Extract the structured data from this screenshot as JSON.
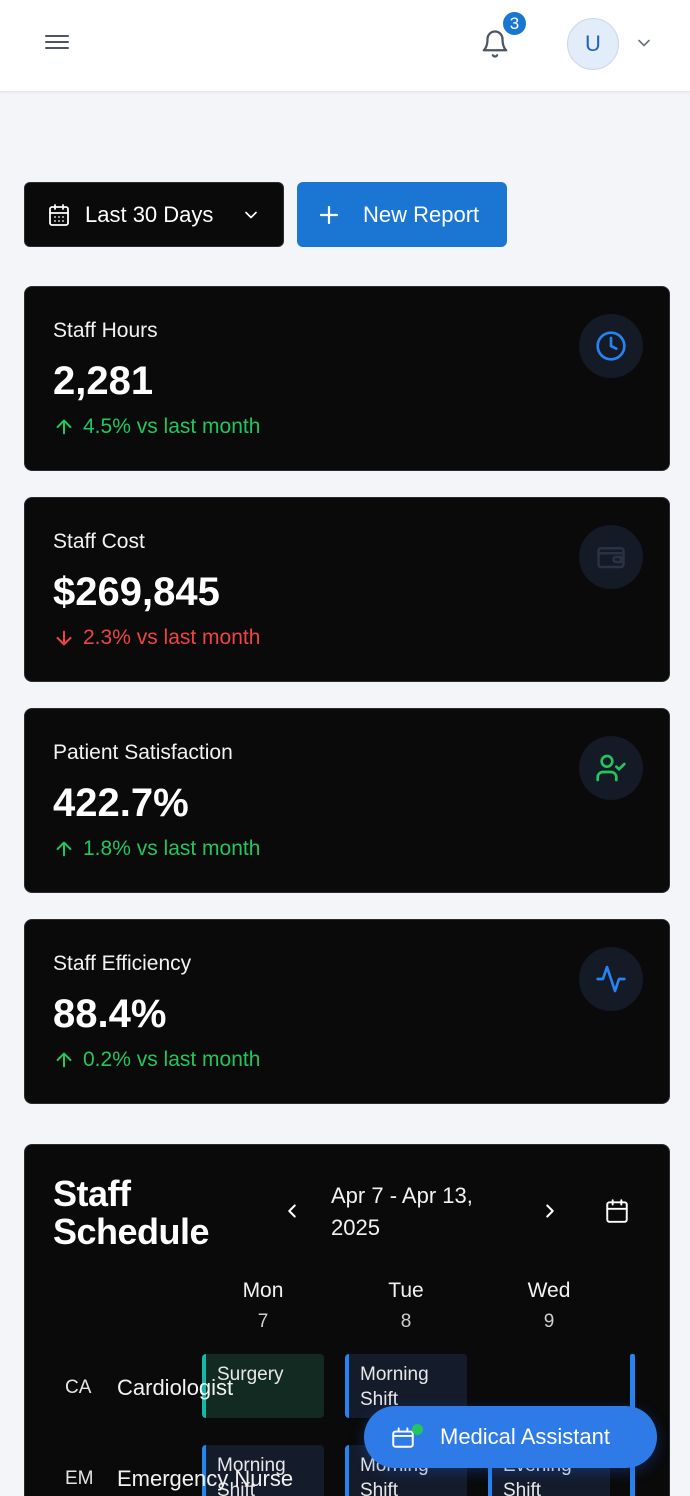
{
  "header": {
    "notification_count": "3",
    "avatar_initial": "U"
  },
  "toolbar": {
    "date_range_label": "Last 30 Days",
    "new_report_label": "New Report"
  },
  "stats": [
    {
      "title": "Staff Hours",
      "value": "2,281",
      "trend": "4.5% vs last month",
      "direction": "up",
      "icon": "clock-icon"
    },
    {
      "title": "Staff Cost",
      "value": "$269,845",
      "trend": "2.3% vs last month",
      "direction": "down",
      "icon": "wallet-icon"
    },
    {
      "title": "Patient Satisfaction",
      "value": "422.7%",
      "trend": "1.8% vs last month",
      "direction": "up",
      "icon": "user-check-icon"
    },
    {
      "title": "Staff Efficiency",
      "value": "88.4%",
      "trend": "0.2% vs last month",
      "direction": "up",
      "icon": "activity-icon"
    }
  ],
  "schedule": {
    "title": "Staff Schedule",
    "date_range": "Apr 7 - Apr 13, 2025",
    "days": [
      {
        "name": "Mon",
        "num": "7"
      },
      {
        "name": "Tue",
        "num": "8"
      },
      {
        "name": "Wed",
        "num": "9"
      }
    ],
    "rows": [
      {
        "code": "CA",
        "name": "Cardiologist",
        "shifts": [
          "Surgery",
          "Morning Shift",
          ""
        ]
      },
      {
        "code": "EM",
        "name": "Emergency Nurse",
        "shifts": [
          "Morning Shift",
          "Morning Shift",
          "Evening Shift"
        ]
      }
    ]
  },
  "assistant": {
    "label": "Medical Assistant"
  },
  "colors": {
    "accent": "#1a76d2",
    "positive": "#22c55e",
    "negative": "#ef4444",
    "card_bg": "#0a0a0b",
    "surgery_shift": "#14b8a6",
    "regular_shift": "#2684f0"
  }
}
